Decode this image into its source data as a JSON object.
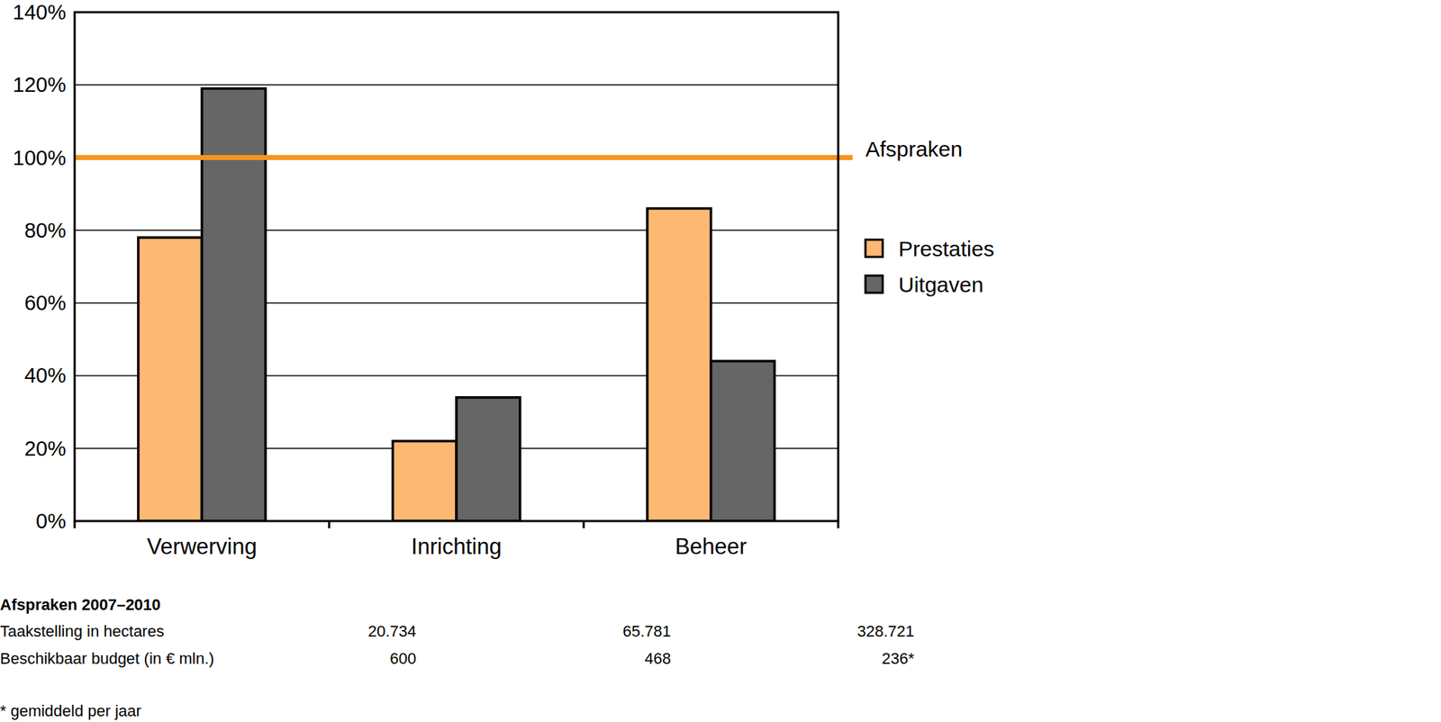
{
  "chart_data": {
    "type": "bar",
    "categories": [
      "Verwerving",
      "Inrichting",
      "Beheer"
    ],
    "series": [
      {
        "name": "Prestaties",
        "color": "#fdb874",
        "values": [
          78,
          22,
          86
        ]
      },
      {
        "name": "Uitgaven",
        "color": "#666666",
        "values": [
          119,
          34,
          44
        ]
      }
    ],
    "ylim": [
      0,
      140
    ],
    "yticks": [
      {
        "value": 0,
        "label": "0%"
      },
      {
        "value": 20,
        "label": "20%"
      },
      {
        "value": 40,
        "label": "40%"
      },
      {
        "value": 60,
        "label": "60%"
      },
      {
        "value": 80,
        "label": "80%"
      },
      {
        "value": 100,
        "label": "100%"
      },
      {
        "value": 120,
        "label": "120%"
      },
      {
        "value": 140,
        "label": "140%"
      }
    ],
    "grid": true,
    "legend": "right",
    "reference_line": {
      "value": 100,
      "label": "Afspraken",
      "color": "#f7941d"
    },
    "table": {
      "title": "Afspraken 2007–2010",
      "rows": [
        {
          "label": "Taakstelling in hectares",
          "values": [
            "20.734",
            "65.781",
            "328.721"
          ]
        },
        {
          "label": "Beschikbaar budget (in € mln.)",
          "values": [
            "600",
            "468",
            "236*"
          ]
        }
      ],
      "footnote": "* gemiddeld per jaar"
    }
  }
}
